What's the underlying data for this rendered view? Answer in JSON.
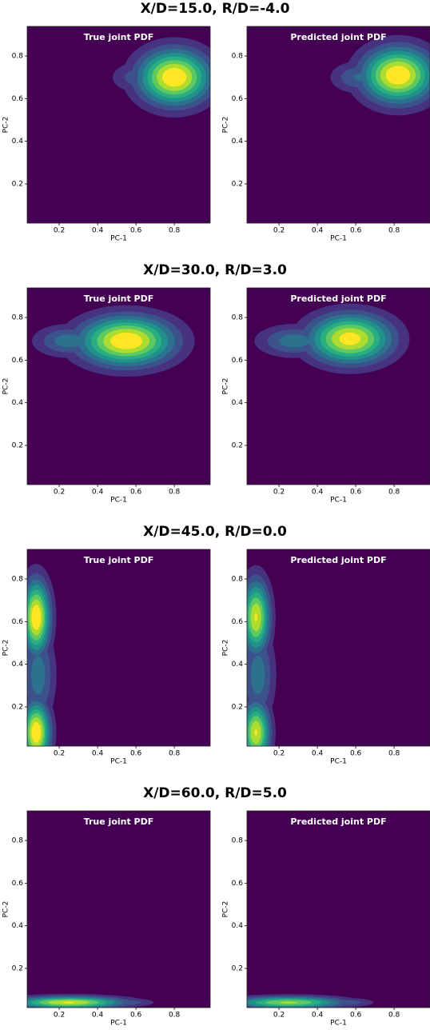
{
  "chart_data": [
    {
      "type": "contour",
      "title": "X/D=15.0, R/D=-4.0",
      "xlabel": "PC-1",
      "ylabel": "PC-2",
      "xlim": [
        0.033,
        0.987
      ],
      "ylim": [
        0.016,
        0.939
      ],
      "xticks": [
        0.2,
        0.4,
        0.6,
        0.8
      ],
      "yticks": [
        0.2,
        0.4,
        0.6,
        0.8
      ],
      "panels": [
        {
          "title": "True joint PDF",
          "blobs": [
            {
              "x": 0.8,
              "y": 0.7,
              "sx": 0.13,
              "sy": 0.09,
              "peak": 1.0
            },
            {
              "x": 0.62,
              "y": 0.7,
              "sx": 0.1,
              "sy": 0.05,
              "peak": 0.3
            }
          ]
        },
        {
          "title": "Predicted joint PDF",
          "blobs": [
            {
              "x": 0.82,
              "y": 0.71,
              "sx": 0.13,
              "sy": 0.09,
              "peak": 1.0
            },
            {
              "x": 0.62,
              "y": 0.7,
              "sx": 0.1,
              "sy": 0.05,
              "peak": 0.35
            }
          ]
        }
      ]
    },
    {
      "type": "contour",
      "title": "X/D=30.0, R/D=3.0",
      "xlabel": "PC-1",
      "ylabel": "PC-2",
      "xlim": [
        0.033,
        0.987
      ],
      "ylim": [
        0.016,
        0.939
      ],
      "xticks": [
        0.2,
        0.4,
        0.6,
        0.8
      ],
      "yticks": [
        0.2,
        0.4,
        0.6,
        0.8
      ],
      "panels": [
        {
          "title": "True joint PDF",
          "blobs": [
            {
              "x": 0.55,
              "y": 0.69,
              "sx": 0.17,
              "sy": 0.08,
              "peak": 1.0
            },
            {
              "x": 0.25,
              "y": 0.69,
              "sx": 0.12,
              "sy": 0.05,
              "peak": 0.4
            }
          ]
        },
        {
          "title": "Predicted joint PDF",
          "blobs": [
            {
              "x": 0.57,
              "y": 0.7,
              "sx": 0.15,
              "sy": 0.08,
              "peak": 0.95
            },
            {
              "x": 0.28,
              "y": 0.69,
              "sx": 0.13,
              "sy": 0.05,
              "peak": 0.4
            }
          ]
        }
      ]
    },
    {
      "type": "contour",
      "title": "X/D=45.0, R/D=0.0",
      "xlabel": "PC-1",
      "ylabel": "PC-2",
      "xlim": [
        0.033,
        0.987
      ],
      "ylim": [
        0.016,
        0.939
      ],
      "xticks": [
        0.2,
        0.4,
        0.6,
        0.8
      ],
      "yticks": [
        0.2,
        0.4,
        0.6,
        0.8
      ],
      "panels": [
        {
          "title": "True joint PDF",
          "blobs": [
            {
              "x": 0.08,
              "y": 0.62,
              "sx": 0.05,
              "sy": 0.12,
              "peak": 1.0
            },
            {
              "x": 0.08,
              "y": 0.08,
              "sx": 0.05,
              "sy": 0.1,
              "peak": 1.0
            },
            {
              "x": 0.09,
              "y": 0.35,
              "sx": 0.06,
              "sy": 0.15,
              "peak": 0.4
            }
          ]
        },
        {
          "title": "Predicted joint PDF",
          "blobs": [
            {
              "x": 0.08,
              "y": 0.62,
              "sx": 0.05,
              "sy": 0.12,
              "peak": 0.9
            },
            {
              "x": 0.08,
              "y": 0.08,
              "sx": 0.05,
              "sy": 0.1,
              "peak": 0.9
            },
            {
              "x": 0.09,
              "y": 0.35,
              "sx": 0.06,
              "sy": 0.15,
              "peak": 0.4
            }
          ]
        }
      ]
    },
    {
      "type": "contour",
      "title": "X/D=60.0, R/D=5.0",
      "xlabel": "PC-1",
      "ylabel": "PC-2",
      "xlim": [
        0.033,
        0.987
      ],
      "ylim": [
        0.016,
        0.939
      ],
      "xticks": [
        0.2,
        0.4,
        0.6,
        0.8
      ],
      "yticks": [
        0.2,
        0.4,
        0.6,
        0.8
      ],
      "panels": [
        {
          "title": "True joint PDF",
          "blobs": [
            {
              "x": 0.25,
              "y": 0.04,
              "sx": 0.2,
              "sy": 0.02,
              "peak": 0.9
            },
            {
              "x": 0.55,
              "y": 0.04,
              "sx": 0.1,
              "sy": 0.015,
              "peak": 0.3
            }
          ]
        },
        {
          "title": "Predicted joint PDF",
          "blobs": [
            {
              "x": 0.25,
              "y": 0.04,
              "sx": 0.2,
              "sy": 0.02,
              "peak": 0.8
            },
            {
              "x": 0.55,
              "y": 0.04,
              "sx": 0.1,
              "sy": 0.015,
              "peak": 0.3
            }
          ]
        }
      ]
    }
  ]
}
